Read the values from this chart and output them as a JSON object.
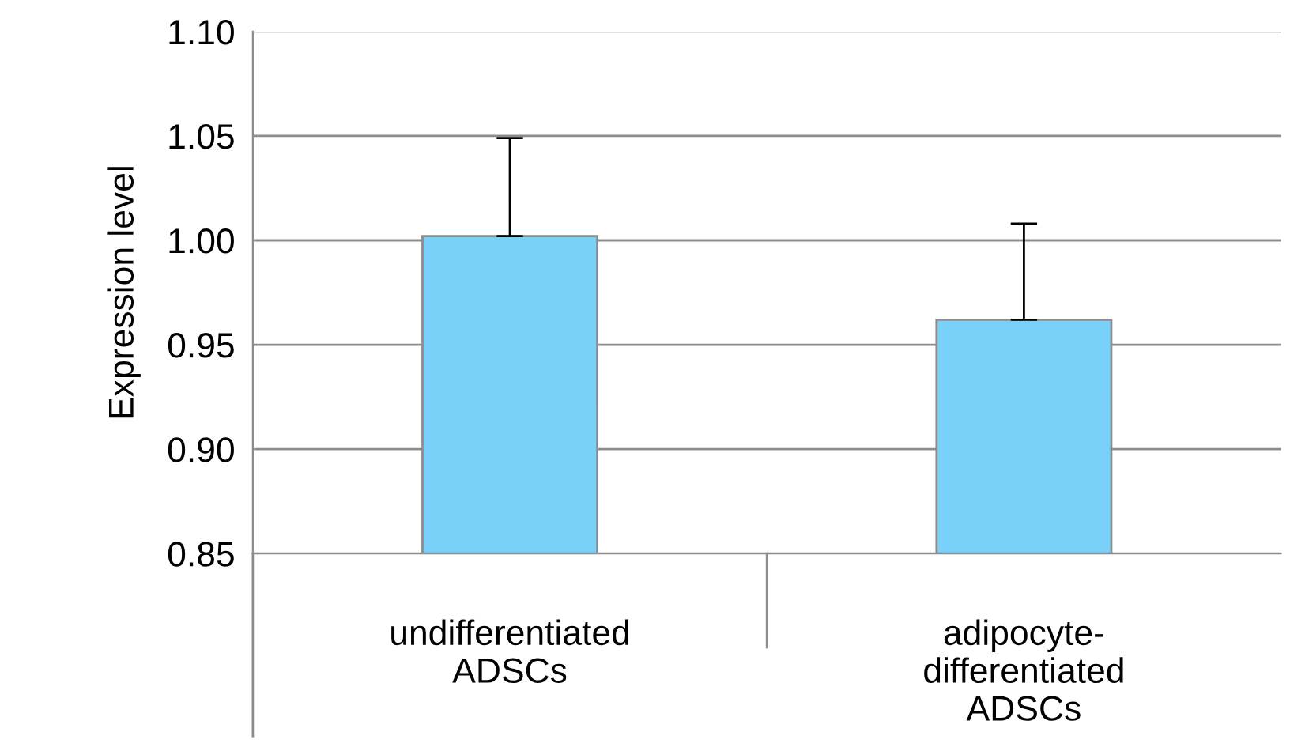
{
  "chart_data": {
    "type": "bar",
    "ylabel": "Expression level",
    "categories": [
      "undifferentiated\nADSCs",
      "adipocyte-\ndifferentiated\nADSCs"
    ],
    "values": [
      1.002,
      0.962
    ],
    "errors": [
      [
        1.002,
        1.049
      ],
      [
        0.962,
        1.008
      ]
    ],
    "color": "#79d0f8",
    "ylim": [
      0.85,
      1.1
    ],
    "yticks": [
      0.85,
      {
        "value": 0.9,
        "label": "0.90"
      },
      0.95,
      {
        "value": 1.0,
        "label": "1.00"
      },
      1.05,
      {
        "value": 1.1,
        "label": "1.10"
      }
    ],
    "grid": "y",
    "legend": false
  }
}
